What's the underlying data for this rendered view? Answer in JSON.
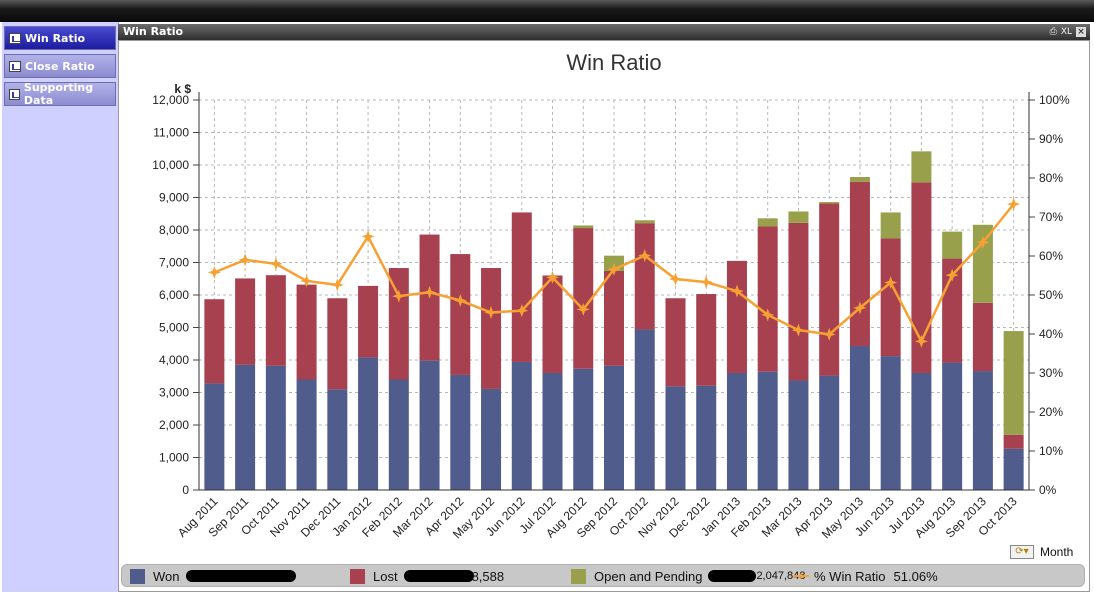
{
  "sidebar": {
    "items": [
      {
        "label": "Win Ratio",
        "active": true
      },
      {
        "label": "Close Ratio",
        "active": false
      },
      {
        "label": "Supporting Data",
        "active": false
      }
    ]
  },
  "panel": {
    "title": "Win Ratio",
    "tools": [
      "XL"
    ]
  },
  "colors": {
    "won": "#505c8c",
    "lost": "#a8414f",
    "pending": "#98a04c",
    "win_ratio": "#f7a033"
  },
  "legend": {
    "won_label": "Won",
    "lost_label": "Lost",
    "lost_partial": "8,588",
    "pending_label": "Open and Pending",
    "pending_partial": "2,047,848",
    "ratio_label": "% Win Ratio",
    "ratio_value": "51.06%"
  },
  "controls": {
    "cycle_label": "Month"
  },
  "chart_data": {
    "type": "bar",
    "title": "Win Ratio",
    "ylabel": "k $",
    "ylim": [
      0,
      12000
    ],
    "y2lim": [
      0,
      100
    ],
    "yticks": [
      "0",
      "1,000",
      "2,000",
      "3,000",
      "4,000",
      "5,000",
      "6,000",
      "7,000",
      "8,000",
      "9,000",
      "10,000",
      "11,000",
      "12,000"
    ],
    "y2ticks": [
      "0%",
      "10%",
      "20%",
      "30%",
      "40%",
      "50%",
      "60%",
      "70%",
      "80%",
      "90%",
      "100%"
    ],
    "grid": true,
    "stacked": true,
    "categories": [
      "Aug 2011",
      "Sep 2011",
      "Oct 2011",
      "Nov 2011",
      "Dec 2011",
      "Jan 2012",
      "Feb 2012",
      "Mar 2012",
      "Apr 2012",
      "May 2012",
      "Jun 2012",
      "Jul 2012",
      "Aug 2012",
      "Sep 2012",
      "Oct 2012",
      "Nov 2012",
      "Dec 2012",
      "Jan 2013",
      "Feb 2013",
      "Mar 2013",
      "Apr 2013",
      "May 2013",
      "Jun 2013",
      "Jul 2013",
      "Aug 2013",
      "Sep 2013",
      "Oct 2013"
    ],
    "series": [
      {
        "name": "Won",
        "values": [
          3280,
          3850,
          3820,
          3400,
          3100,
          4080,
          3400,
          3980,
          3540,
          3110,
          3940,
          3600,
          3730,
          3820,
          4940,
          3190,
          3210,
          3600,
          3640,
          3370,
          3520,
          4430,
          4120,
          3600,
          3920,
          3660,
          1270
        ]
      },
      {
        "name": "Lost",
        "values": [
          2590,
          2660,
          2790,
          2920,
          2800,
          2200,
          3430,
          3880,
          3720,
          3720,
          4600,
          3000,
          4330,
          2920,
          3270,
          2710,
          2820,
          3450,
          4470,
          4850,
          5300,
          5050,
          3620,
          5860,
          3200,
          2100,
          430
        ]
      },
      {
        "name": "Open and Pending",
        "values": [
          0,
          0,
          0,
          0,
          0,
          0,
          0,
          0,
          0,
          0,
          0,
          0,
          80,
          470,
          90,
          0,
          0,
          0,
          250,
          350,
          40,
          150,
          800,
          960,
          830,
          2400,
          3190
        ]
      },
      {
        "name": "% Win Ratio",
        "axis": "right",
        "type": "line",
        "values": [
          55.8,
          59.0,
          58.0,
          53.6,
          52.6,
          65.0,
          49.7,
          50.7,
          48.6,
          45.5,
          46.0,
          54.5,
          46.3,
          56.6,
          60.1,
          54.1,
          53.3,
          51.0,
          44.9,
          41.0,
          39.9,
          46.7,
          53.2,
          38.1,
          55.1,
          63.5,
          73.3
        ]
      }
    ]
  }
}
